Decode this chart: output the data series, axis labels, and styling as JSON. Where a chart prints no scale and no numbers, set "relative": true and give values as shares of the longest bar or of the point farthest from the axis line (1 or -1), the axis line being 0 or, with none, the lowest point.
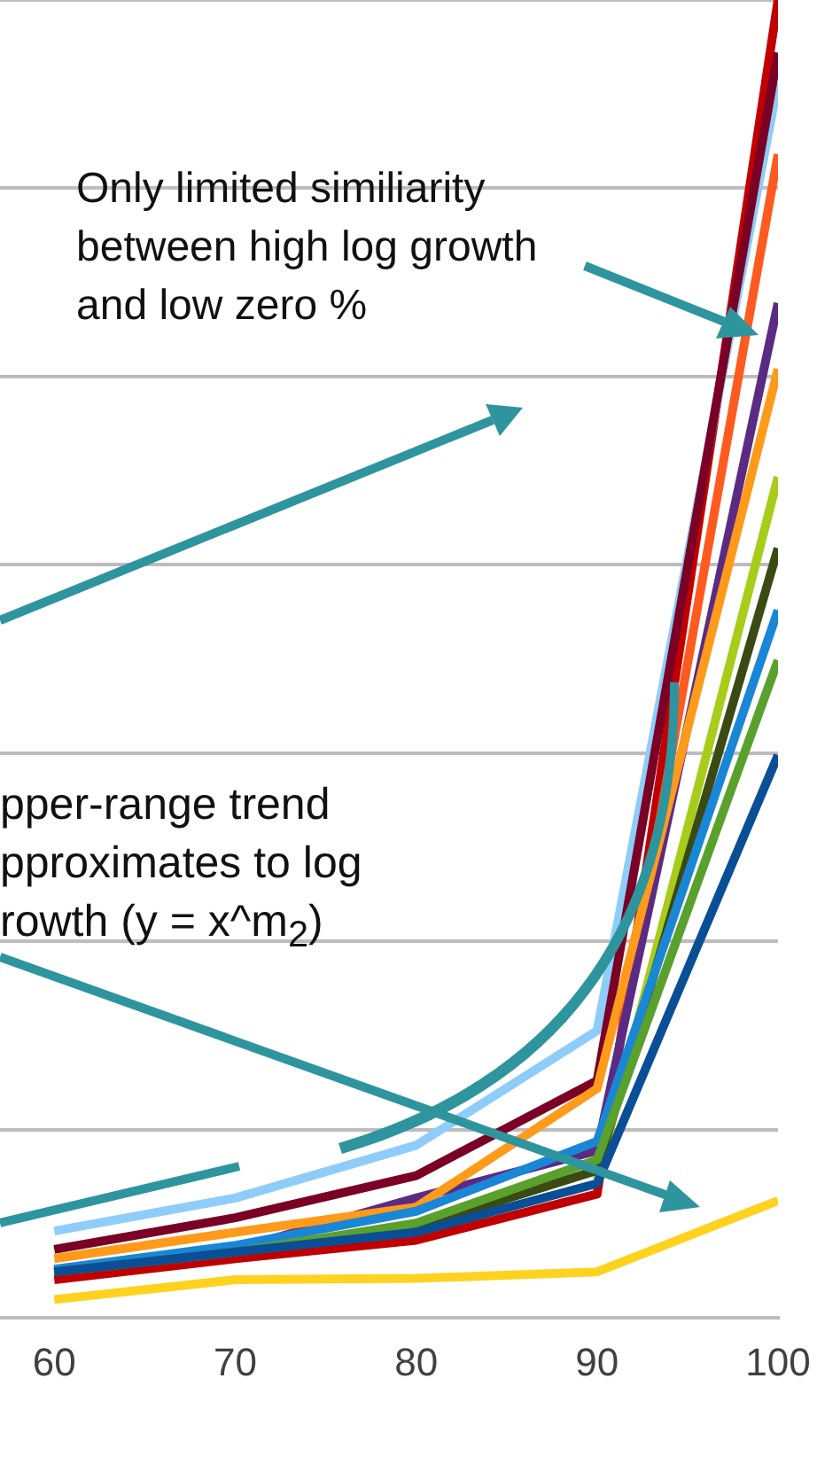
{
  "chart_data": {
    "type": "line",
    "relative": true,
    "grid": "y",
    "legend": false,
    "marker": "none",
    "line_style": "solid",
    "x": [
      60,
      70,
      80,
      90,
      100
    ],
    "xlim": [
      57,
      100
    ],
    "xticks": [
      60,
      70,
      80,
      90,
      100
    ],
    "annotations": [
      "Only limited similiarity between high log growth and low zero %",
      "pper-range trend pproximates to log rowth (y = x^m$_{2}$)"
    ],
    "series": [
      {
        "color": "#ffd21f",
        "values": [
          0.014,
          0.029,
          0.03,
          0.035,
          0.089
        ]
      },
      {
        "color": "#0a4e96",
        "values": [
          0.035,
          0.05,
          0.065,
          0.102,
          0.427
        ]
      },
      {
        "color": "#5aa02c",
        "values": [
          0.035,
          0.05,
          0.072,
          0.12,
          0.499
        ]
      },
      {
        "color": "#1a86d6",
        "values": [
          0.037,
          0.055,
          0.081,
          0.134,
          0.537
        ]
      },
      {
        "color": "#3a4a12",
        "values": [
          0.035,
          0.05,
          0.069,
          0.112,
          0.584
        ]
      },
      {
        "color": "#a8cc1a",
        "values": [
          null,
          null,
          null,
          0.105,
          0.638
        ]
      },
      {
        "color": "#ff9a1a",
        "values": [
          0.045,
          0.065,
          0.084,
          0.174,
          0.72
        ]
      },
      {
        "color": "#5b2b83",
        "values": [
          0.035,
          0.052,
          0.091,
          0.127,
          0.77
        ]
      },
      {
        "color": "#ff5a1f",
        "values": [
          null,
          null,
          null,
          0.11,
          0.883
        ]
      },
      {
        "color": "#7a0026",
        "values": [
          0.052,
          0.076,
          0.108,
          0.18,
          0.96
        ]
      },
      {
        "color": "#8ecdf9",
        "values": [
          0.066,
          0.091,
          0.131,
          0.218,
          0.937
        ]
      },
      {
        "color": "#c00000",
        "values": [
          0.029,
          0.045,
          0.059,
          0.094,
          1
        ]
      }
    ]
  }
}
